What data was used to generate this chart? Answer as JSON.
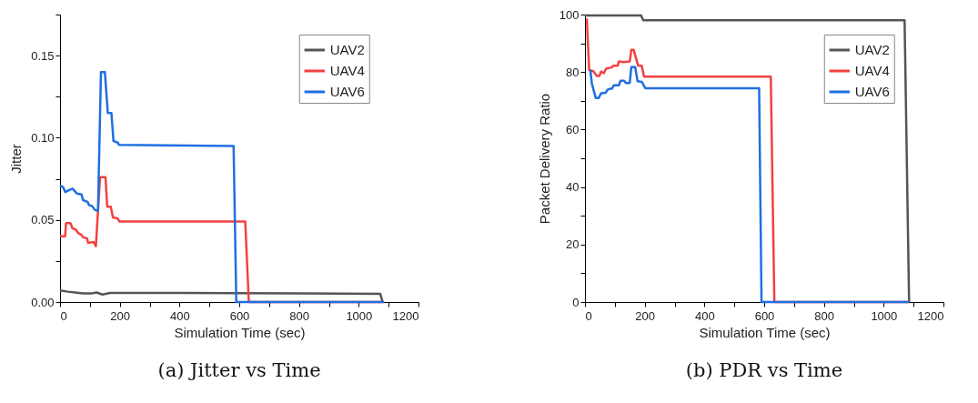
{
  "chart_data": [
    {
      "type": "line",
      "title": "(a) Jitter vs Time",
      "xlabel": "Simulation Time (sec)",
      "ylabel": "Jitter",
      "legend": "top right",
      "xlim": [
        0,
        1200
      ],
      "xticks": [
        0,
        {
          "value": 100,
          "label": null
        },
        200,
        {
          "value": 300,
          "label": null
        },
        400,
        {
          "value": 500,
          "label": null
        },
        600,
        {
          "value": 700,
          "label": null
        },
        800,
        {
          "value": 900,
          "label": null
        },
        1000,
        {
          "value": 1100,
          "label": null
        },
        1200
      ],
      "ylim": [
        0,
        0.175
      ],
      "yticks": [
        {
          "value": 0,
          "label": "0.00"
        },
        {
          "value": 0.025,
          "label": null
        },
        {
          "value": 0.05,
          "label": "0.05"
        },
        {
          "value": 0.075,
          "label": null
        },
        {
          "value": 0.1,
          "label": "0.10"
        },
        {
          "value": 0.125,
          "label": null
        },
        {
          "value": 0.15,
          "label": "0.15"
        },
        {
          "value": 0.175,
          "label": null
        }
      ],
      "series": [
        {
          "name": "UAV2",
          "color": "#555555",
          "x": [
            0,
            26,
            56,
            77,
            105,
            122,
            142,
            168,
            400,
            800,
            1072,
            1080
          ],
          "values": [
            0.007,
            0.0063,
            0.0057,
            0.0052,
            0.0052,
            0.0058,
            0.0046,
            0.0055,
            0.0055,
            0.0052,
            0.005,
            0
          ]
        },
        {
          "name": "UAV4",
          "color": "#f24141",
          "x": [
            0,
            17,
            20,
            35,
            41,
            53,
            61,
            72,
            77,
            90,
            94,
            112,
            120,
            134,
            152,
            158,
            170,
            177,
            192,
            199,
            620,
            632,
            1083
          ],
          "values": [
            0.04,
            0.04,
            0.048,
            0.048,
            0.045,
            0.044,
            0.042,
            0.0408,
            0.0394,
            0.0388,
            0.036,
            0.0366,
            0.034,
            0.076,
            0.076,
            0.058,
            0.058,
            0.0515,
            0.051,
            0.049,
            0.049,
            0,
            0
          ]
        },
        {
          "name": "UAV6",
          "color": "#1f6fe0",
          "x": [
            0,
            10,
            17,
            42,
            57,
            72,
            77,
            92,
            97,
            107,
            117,
            127,
            137,
            150,
            160,
            172,
            179,
            194,
            197,
            581,
            590,
            1083
          ],
          "values": [
            0.071,
            0.07,
            0.067,
            0.069,
            0.066,
            0.0655,
            0.062,
            0.061,
            0.059,
            0.0585,
            0.056,
            0.0555,
            0.14,
            0.14,
            0.115,
            0.115,
            0.098,
            0.097,
            0.0956,
            0.095,
            0,
            0
          ]
        }
      ]
    },
    {
      "type": "line",
      "title": "(b) PDR vs Time",
      "xlabel": "Simulation Time (sec)",
      "ylabel": "Packet Delivery Ratio",
      "legend": "top right",
      "xlim": [
        0,
        1200
      ],
      "xticks": [
        0,
        {
          "value": 100,
          "label": null
        },
        200,
        {
          "value": 300,
          "label": null
        },
        400,
        {
          "value": 500,
          "label": null
        },
        600,
        {
          "value": 700,
          "label": null
        },
        800,
        {
          "value": 900,
          "label": null
        },
        1000,
        {
          "value": 1100,
          "label": null
        },
        1200
      ],
      "ylim": [
        0,
        100
      ],
      "yticks": [
        0,
        {
          "value": 10,
          "label": null
        },
        20,
        {
          "value": 30,
          "label": null
        },
        40,
        {
          "value": 50,
          "label": null
        },
        60,
        {
          "value": 70,
          "label": null
        },
        80,
        {
          "value": 90,
          "label": null
        },
        100
      ],
      "series": [
        {
          "name": "UAV2",
          "color": "#555555",
          "x": [
            0,
            188,
            195,
            1070,
            1085
          ],
          "values": [
            99.7,
            99.7,
            98,
            98,
            0
          ]
        },
        {
          "name": "UAV4",
          "color": "#f24141",
          "x": [
            6,
            14,
            28,
            40,
            48,
            54,
            63,
            71,
            89,
            94,
            109,
            114,
            129,
            150,
            155,
            163,
            178,
            190,
            198,
            622,
            634,
            1085
          ],
          "values": [
            98.6,
            80.7,
            80.3,
            78.6,
            78.6,
            80.2,
            79.6,
            81.2,
            81.6,
            82.2,
            82.2,
            83.7,
            83.5,
            83.7,
            87.7,
            87.7,
            82.2,
            82.2,
            78.4,
            78.4,
            0,
            0
          ]
        },
        {
          "name": "UAV6",
          "color": "#1f6fe0",
          "x": [
            18,
            23,
            36,
            46,
            54,
            69,
            77,
            91,
            97,
            114,
            119,
            131,
            137,
            150,
            155,
            168,
            176,
            190,
            202,
            583,
            591,
            1085
          ],
          "values": [
            80.7,
            76,
            71,
            71,
            72.6,
            72.8,
            74,
            74.3,
            75.4,
            75.4,
            77,
            77,
            76.2,
            76.2,
            81.7,
            81.7,
            76.8,
            76.6,
            74.4,
            74.4,
            0,
            0
          ]
        }
      ]
    }
  ]
}
